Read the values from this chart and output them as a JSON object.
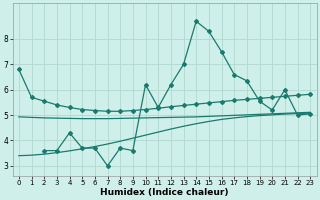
{
  "xlabel": "Humidex (Indice chaleur)",
  "bg_color": "#cff0ea",
  "grid_color": "#b0d8cf",
  "line_color": "#1a7a6e",
  "xlim": [
    -0.5,
    23.5
  ],
  "ylim": [
    2.6,
    9.4
  ],
  "yticks": [
    3,
    4,
    5,
    6,
    7,
    8
  ],
  "xticks": [
    0,
    1,
    2,
    3,
    4,
    5,
    6,
    7,
    8,
    9,
    10,
    11,
    12,
    13,
    14,
    15,
    16,
    17,
    18,
    19,
    20,
    21,
    22,
    23
  ],
  "line1_x": [
    0,
    1,
    2,
    3,
    4,
    5,
    6,
    7,
    8,
    9,
    10,
    11,
    12,
    13,
    14,
    15,
    16,
    17,
    18,
    19,
    20,
    21,
    22,
    23
  ],
  "line1_y": [
    6.8,
    5.7,
    5.55,
    5.4,
    5.3,
    5.22,
    5.18,
    5.15,
    5.15,
    5.18,
    5.22,
    5.27,
    5.33,
    5.38,
    5.43,
    5.48,
    5.53,
    5.58,
    5.62,
    5.66,
    5.7,
    5.74,
    5.78,
    5.82
  ],
  "line2_x": [
    0,
    1,
    2,
    3,
    4,
    5,
    6,
    7,
    8,
    9,
    10,
    11,
    12,
    13,
    14,
    15,
    16,
    17,
    18,
    19,
    20,
    21,
    22,
    23
  ],
  "line2_y": [
    4.93,
    4.91,
    4.89,
    4.88,
    4.87,
    4.86,
    4.86,
    4.86,
    4.87,
    4.88,
    4.89,
    4.9,
    4.91,
    4.92,
    4.93,
    4.95,
    4.97,
    4.99,
    5.01,
    5.03,
    5.05,
    5.07,
    5.09,
    5.11
  ],
  "line3_x": [
    0,
    1,
    2,
    3,
    4,
    5,
    6,
    7,
    8,
    9,
    10,
    11,
    12,
    13,
    14,
    15,
    16,
    17,
    18,
    19,
    20,
    21,
    22,
    23
  ],
  "line3_y": [
    3.4,
    3.42,
    3.46,
    3.52,
    3.59,
    3.67,
    3.76,
    3.86,
    3.97,
    4.09,
    4.21,
    4.33,
    4.45,
    4.56,
    4.66,
    4.75,
    4.83,
    4.89,
    4.94,
    4.98,
    5.01,
    5.04,
    5.06,
    5.08
  ],
  "line4_x": [
    2,
    3,
    4,
    5,
    6,
    7,
    8,
    9,
    10,
    11,
    12,
    13,
    14,
    15,
    16,
    17,
    18,
    19,
    20,
    21,
    22,
    23
  ],
  "line4_y": [
    3.6,
    3.6,
    4.3,
    3.7,
    3.7,
    3.0,
    3.7,
    3.6,
    6.2,
    5.3,
    6.2,
    7.0,
    8.7,
    8.3,
    7.5,
    6.6,
    6.35,
    5.55,
    5.2,
    6.0,
    5.0,
    5.05
  ]
}
